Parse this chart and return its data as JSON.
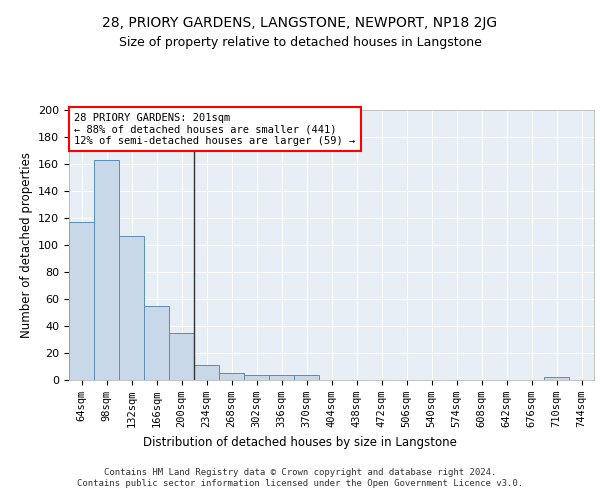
{
  "title": "28, PRIORY GARDENS, LANGSTONE, NEWPORT, NP18 2JG",
  "subtitle": "Size of property relative to detached houses in Langstone",
  "xlabel": "Distribution of detached houses by size in Langstone",
  "ylabel": "Number of detached properties",
  "categories": [
    "64sqm",
    "98sqm",
    "132sqm",
    "166sqm",
    "200sqm",
    "234sqm",
    "268sqm",
    "302sqm",
    "336sqm",
    "370sqm",
    "404sqm",
    "438sqm",
    "472sqm",
    "506sqm",
    "540sqm",
    "574sqm",
    "608sqm",
    "642sqm",
    "676sqm",
    "710sqm",
    "744sqm"
  ],
  "values": [
    117,
    163,
    107,
    55,
    35,
    11,
    5,
    4,
    4,
    4,
    0,
    0,
    0,
    0,
    0,
    0,
    0,
    0,
    0,
    2,
    0
  ],
  "bar_color": "#c8d8e8",
  "bar_edge_color": "#5b8db8",
  "vline_x": 4.5,
  "vline_color": "#333333",
  "annotation_text": "28 PRIORY GARDENS: 201sqm\n← 88% of detached houses are smaller (441)\n12% of semi-detached houses are larger (59) →",
  "annotation_box_color": "white",
  "annotation_box_edge_color": "red",
  "ylim": [
    0,
    200
  ],
  "yticks": [
    0,
    20,
    40,
    60,
    80,
    100,
    120,
    140,
    160,
    180,
    200
  ],
  "bg_color": "#e8eef5",
  "footer": "Contains HM Land Registry data © Crown copyright and database right 2024.\nContains public sector information licensed under the Open Government Licence v3.0.",
  "title_fontsize": 10,
  "subtitle_fontsize": 9,
  "xlabel_fontsize": 8.5,
  "ylabel_fontsize": 8.5,
  "annotation_fontsize": 7.5,
  "footer_fontsize": 6.5,
  "tick_fontsize": 7.5,
  "ytick_fontsize": 8
}
